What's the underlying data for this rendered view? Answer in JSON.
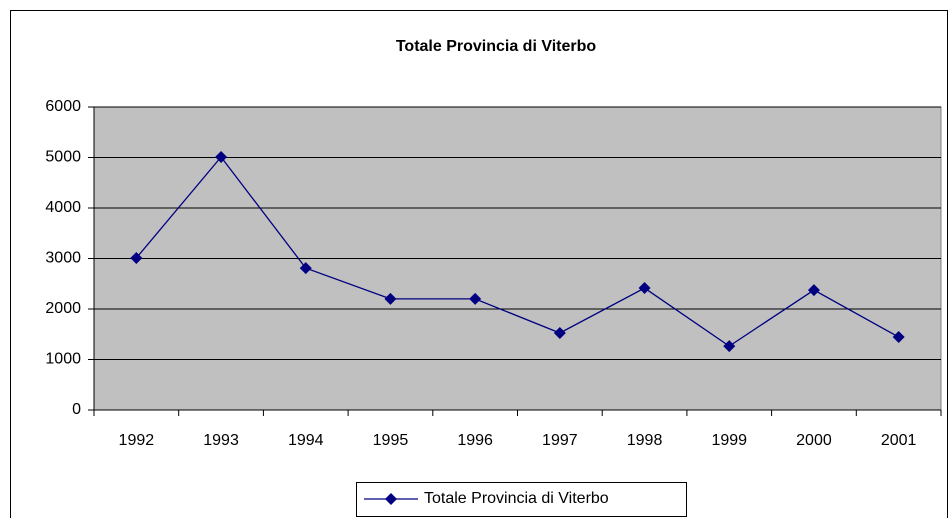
{
  "chart_data": {
    "type": "line",
    "title": "Totale Provincia di Viterbo",
    "categories": [
      "1992",
      "1993",
      "1994",
      "1995",
      "1996",
      "1997",
      "1998",
      "1999",
      "2000",
      "2001"
    ],
    "series": [
      {
        "name": "Totale Provincia di Viterbo",
        "color": "#000080",
        "values": [
          3010,
          5010,
          2810,
          2200,
          2200,
          1525,
          2415,
          1265,
          2375,
          1445
        ]
      }
    ],
    "ylim": [
      0,
      6000
    ],
    "yticks": [
      0,
      1000,
      2000,
      3000,
      4000,
      5000,
      6000
    ],
    "grid": true,
    "legend": "bottom",
    "plot_background": "#c0c0c0"
  }
}
